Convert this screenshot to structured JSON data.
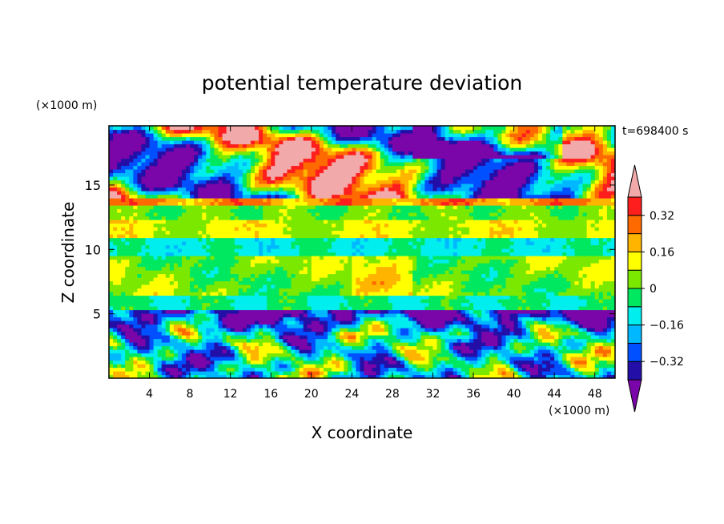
{
  "chart_data": {
    "type": "heatmap",
    "title": "potential temperature deviation",
    "xlabel": "X coordinate",
    "ylabel": "Z coordinate",
    "x_unit": "(×1000 m)",
    "y_unit": "(×1000 m)",
    "time_label": "t=698400 s",
    "xlim": [
      0,
      50
    ],
    "ylim": [
      0,
      19.6
    ],
    "x_ticks": [
      "4",
      "8",
      "12",
      "16",
      "20",
      "24",
      "28",
      "32",
      "36",
      "40",
      "44",
      "48"
    ],
    "x_tick_values": [
      4,
      8,
      12,
      16,
      20,
      24,
      28,
      32,
      36,
      40,
      44,
      48
    ],
    "y_ticks": [
      "5",
      "10",
      "15"
    ],
    "y_tick_values": [
      5,
      10,
      15
    ],
    "colorbar": {
      "levels": [
        -0.4,
        -0.32,
        -0.24,
        -0.16,
        -0.08,
        0,
        0.08,
        0.16,
        0.24,
        0.32,
        0.4
      ],
      "labels": [
        "0.32",
        "0.16",
        "0",
        "−0.16",
        "−0.32"
      ],
      "label_values": [
        0.32,
        0.16,
        0,
        -0.16,
        -0.32
      ],
      "colors": [
        "#7a05a8",
        "#230fa8",
        "#0050ff",
        "#00b8ff",
        "#00eeee",
        "#00e860",
        "#7be800",
        "#ffff00",
        "#ffb400",
        "#ff6a00",
        "#ff1e1e",
        "#f2a9a9"
      ],
      "extend": "both"
    }
  }
}
